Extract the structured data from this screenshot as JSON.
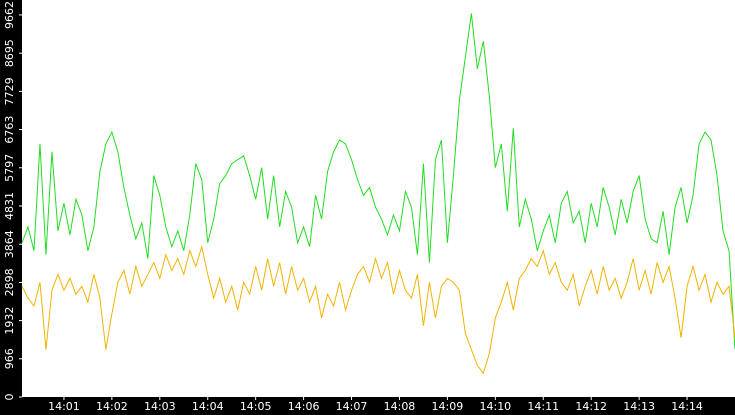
{
  "chart_data": {
    "type": "line",
    "categories": [
      null,
      null,
      null,
      null,
      null,
      null,
      null,
      "14:01",
      null,
      null,
      null,
      null,
      null,
      null,
      null,
      "14:02",
      null,
      null,
      null,
      null,
      null,
      null,
      null,
      "14:03",
      null,
      null,
      null,
      null,
      null,
      null,
      null,
      "14:04",
      null,
      null,
      null,
      null,
      null,
      null,
      null,
      "14:05",
      null,
      null,
      null,
      null,
      null,
      null,
      null,
      "14:06",
      null,
      null,
      null,
      null,
      null,
      null,
      null,
      "14:07",
      null,
      null,
      null,
      null,
      null,
      null,
      null,
      "14:08",
      null,
      null,
      null,
      null,
      null,
      null,
      null,
      "14:09",
      null,
      null,
      null,
      null,
      null,
      null,
      null,
      "14:10",
      null,
      null,
      null,
      null,
      null,
      null,
      null,
      "14:11",
      null,
      null,
      null,
      null,
      null,
      null,
      null,
      "14:12",
      null,
      null,
      null,
      null,
      null,
      null,
      null,
      "14:13",
      null,
      null,
      null,
      null,
      null,
      null,
      null,
      "14:14",
      null,
      null,
      null,
      null,
      null,
      null,
      null,
      null
    ],
    "series": [
      {
        "color": "#22dd22",
        "values": [
          3900,
          4300,
          3700,
          6400,
          3600,
          6200,
          4200,
          4900,
          4100,
          5000,
          4600,
          3700,
          4300,
          5700,
          6400,
          6700,
          6200,
          5300,
          4600,
          4000,
          4400,
          3500,
          5600,
          5100,
          4300,
          3800,
          4200,
          3700,
          4600,
          5900,
          5500,
          3900,
          4500,
          5400,
          5600,
          5900,
          6000,
          6100,
          5600,
          5000,
          5800,
          4500,
          5600,
          4300,
          5200,
          4800,
          3900,
          4300,
          3800,
          5100,
          4500,
          5700,
          6200,
          6500,
          6400,
          6000,
          5500,
          5100,
          5300,
          4800,
          4500,
          4100,
          4600,
          4200,
          5200,
          4800,
          3600,
          5900,
          3400,
          6000,
          6500,
          3900,
          5600,
          7500,
          8600,
          9700,
          8300,
          9000,
          7600,
          5800,
          6400,
          4700,
          6800,
          4300,
          5000,
          4500,
          3700,
          4200,
          4600,
          3900,
          4900,
          5200,
          4400,
          4700,
          3900,
          4900,
          4300,
          5300,
          4800,
          4100,
          5000,
          4400,
          5200,
          5600,
          4500,
          4000,
          3900,
          4700,
          3600,
          4800,
          5300,
          4400,
          5100,
          6400,
          6700,
          6500,
          5600,
          4200,
          3700,
          1200
        ]
      },
      {
        "color": "#f0b400",
        "values": [
          2800,
          2500,
          2300,
          2900,
          1200,
          2700,
          3100,
          2700,
          3000,
          2600,
          2800,
          2400,
          3100,
          2500,
          1200,
          2100,
          2900,
          3200,
          2600,
          3300,
          2800,
          3100,
          3400,
          3000,
          3600,
          3200,
          3500,
          3100,
          3700,
          3300,
          3800,
          3100,
          2500,
          3000,
          2400,
          2800,
          2200,
          2900,
          2600,
          3300,
          2700,
          3500,
          2800,
          3400,
          2600,
          3300,
          2700,
          3000,
          2400,
          2800,
          2000,
          2600,
          2300,
          2900,
          2200,
          2700,
          3100,
          3300,
          2900,
          3500,
          3000,
          3400,
          2600,
          3200,
          2700,
          2500,
          3100,
          1800,
          2900,
          2000,
          2800,
          3000,
          2900,
          2700,
          1600,
          1200,
          800,
          600,
          1100,
          2000,
          2400,
          2900,
          2200,
          3000,
          3200,
          3500,
          3300,
          3700,
          3100,
          3400,
          2900,
          2700,
          3100,
          2300,
          2800,
          3200,
          2600,
          3300,
          2700,
          3000,
          2500,
          2900,
          3500,
          2700,
          3200,
          2600,
          3400,
          2900,
          3300,
          2500,
          1500,
          2800,
          3300,
          2700,
          3100,
          2400,
          2900,
          2600,
          2800,
          1500
        ]
      }
    ],
    "ylim": [
      0,
      10040
    ],
    "yticks": [
      0,
      966,
      1932,
      2898,
      3864,
      4831,
      5797,
      6763,
      7729,
      8695,
      9662
    ]
  }
}
